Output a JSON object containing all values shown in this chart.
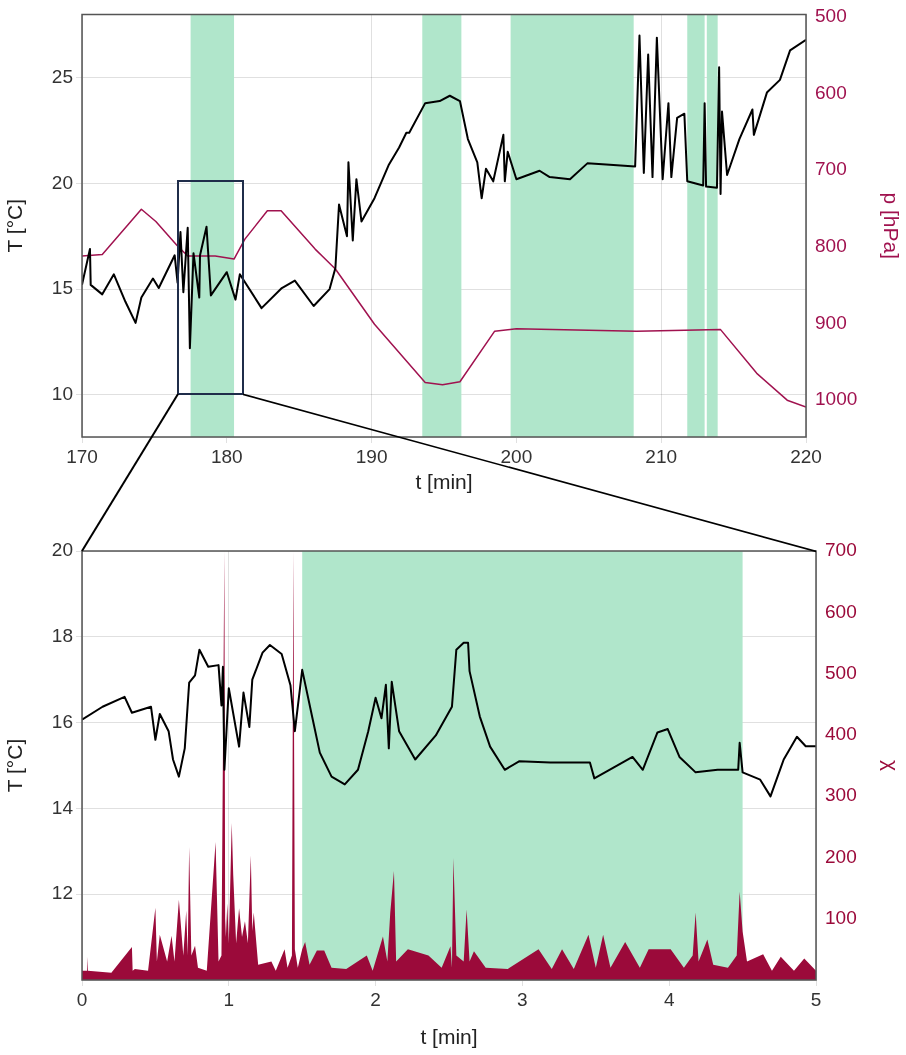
{
  "chart_data": [
    {
      "type": "line",
      "xlabel": "t [min]",
      "ylabel": "T [°C]",
      "y2label": "p [hPa]",
      "xlim": [
        170,
        220
      ],
      "xticks": [
        170,
        180,
        190,
        200,
        210,
        220
      ],
      "ylim": [
        8,
        28
      ],
      "yticks": [
        10,
        15,
        20,
        25
      ],
      "y2lim": [
        1048,
        497
      ],
      "y2ticks": [
        500,
        600,
        700,
        800,
        900,
        1000
      ],
      "grid": true,
      "line_style": "solid",
      "bands": [
        {
          "axis": "x",
          "from": 177.5,
          "to": 180.5,
          "color": "#b0e6cb"
        },
        {
          "axis": "x",
          "from": 193.5,
          "to": 196.2,
          "color": "#b0e6cb"
        },
        {
          "axis": "x",
          "from": 199.6,
          "to": 208.1,
          "color": "#b0e6cb"
        },
        {
          "axis": "x",
          "from": 211.8,
          "to": 213.0,
          "color": "#b0e6cb"
        },
        {
          "axis": "x",
          "from": 213.15,
          "to": 213.9,
          "color": "#b0e6cb"
        }
      ],
      "series": [
        {
          "color": "#000000",
          "x": [
            170,
            170.55,
            170.6,
            171.4,
            172.2,
            173.0,
            173.7,
            174.1,
            174.9,
            175.3,
            176.4,
            176.6,
            176.8,
            177.0,
            177.3,
            177.45,
            177.7,
            178.1,
            178.15,
            178.6,
            178.9,
            180.0,
            180.6,
            180.9,
            182.4,
            183.8,
            184.7,
            186.0,
            187.1,
            187.5,
            187.75,
            188.3,
            188.4,
            188.7,
            188.95,
            189.3,
            190.2,
            191.2,
            191.9,
            192.4,
            192.6,
            193.7,
            194.7,
            195.4,
            196.1,
            196.65,
            197.3,
            197.6,
            197.9,
            198.4,
            199.1,
            199.2,
            199.4,
            200.0,
            201.6,
            202.3,
            203.7,
            204.9,
            206.2,
            208.2,
            208.5,
            208.8,
            209.1,
            209.4,
            209.7,
            210.1,
            210.5,
            210.7,
            211.1,
            211.6,
            211.8,
            212.9,
            213.0,
            213.1,
            213.85,
            214.0,
            214.1,
            214.2,
            214.55,
            215.4,
            216.3,
            216.4,
            217.3,
            218.2,
            218.9,
            220
          ],
          "values": [
            15.2,
            16.9,
            15.2,
            14.75,
            15.7,
            14.4,
            13.4,
            14.6,
            15.5,
            15.05,
            16.6,
            15.3,
            17.7,
            14.85,
            17.9,
            12.2,
            16.7,
            14.6,
            16.6,
            17.95,
            14.7,
            15.8,
            14.5,
            15.7,
            14.1,
            15.05,
            15.4,
            14.2,
            15.0,
            16.0,
            19.0,
            17.5,
            21.0,
            17.3,
            20.2,
            18.2,
            19.3,
            20.9,
            21.7,
            22.4,
            22.4,
            23.8,
            23.9,
            24.15,
            23.9,
            22.1,
            21.0,
            19.3,
            20.7,
            20.1,
            22.3,
            20.1,
            21.5,
            20.2,
            20.6,
            20.3,
            20.2,
            20.95,
            20.9,
            20.8,
            27.0,
            20.5,
            26.1,
            20.3,
            26.9,
            20.2,
            23.8,
            20.3,
            23.1,
            23.3,
            20.1,
            19.9,
            23.8,
            19.85,
            19.8,
            25.5,
            19.5,
            23.4,
            20.4,
            22.1,
            23.5,
            22.3,
            24.3,
            24.9,
            26.3,
            26.8
          ]
        },
        {
          "color": "#a0124f",
          "axis": "y2",
          "x": [
            170,
            171.4,
            174.1,
            175.1,
            176.55,
            177.3,
            179.2,
            180.5,
            181.25,
            182.8,
            183.75,
            186.1,
            187.5,
            190.2,
            193.7,
            194.9,
            196.1,
            198.5,
            200.0,
            208.3,
            214.1,
            216.6,
            218.7,
            220
          ],
          "values": [
            812,
            810,
            751,
            767,
            798,
            812,
            812,
            816,
            790,
            753,
            753,
            803,
            829,
            901,
            977,
            980,
            976,
            910,
            907,
            910,
            908,
            965,
            1000,
            1009
          ]
        }
      ]
    },
    {
      "type": "line",
      "xlabel": "t [min]",
      "ylabel": "T [°C]",
      "y2label": "χ",
      "xlim": [
        0,
        5
      ],
      "xticks": [
        0,
        1,
        2,
        3,
        4,
        5
      ],
      "ylim": [
        10,
        20
      ],
      "yticks": [
        12,
        14,
        16,
        18,
        20
      ],
      "y2lim": [
        0,
        700
      ],
      "y2ticks": [
        100,
        200,
        300,
        400,
        500,
        600,
        700
      ],
      "grid": true,
      "line_style": "solid",
      "bands": [
        {
          "axis": "x",
          "from": 1.5,
          "to": 4.5,
          "color": "#b0e6cb"
        }
      ],
      "series": [
        {
          "type": "area",
          "color": "#9b0a3a",
          "axis": "y2",
          "x": [
            0,
            0.03,
            0.034,
            0.04,
            0.2,
            0.34,
            0.345,
            0.36,
            0.45,
            0.5,
            0.51,
            0.53,
            0.58,
            0.61,
            0.63,
            0.66,
            0.69,
            0.71,
            0.72,
            0.73,
            0.745,
            0.77,
            0.79,
            0.85,
            0.91,
            0.93,
            0.95,
            0.97,
            0.975,
            0.98,
            0.99,
            1.0,
            1.02,
            1.03,
            1.05,
            1.07,
            1.09,
            1.11,
            1.13,
            1.15,
            1.16,
            1.17,
            1.2,
            1.29,
            1.32,
            1.38,
            1.4,
            1.43,
            1.44,
            1.45,
            1.47,
            1.5,
            1.52,
            1.55,
            1.6,
            1.65,
            1.7,
            1.8,
            1.94,
            1.98,
            2.05,
            2.08,
            2.1,
            2.125,
            2.14,
            2.22,
            2.36,
            2.45,
            2.51,
            2.52,
            2.53,
            2.55,
            2.6,
            2.62,
            2.64,
            2.67,
            2.75,
            2.9,
            3.11,
            3.2,
            3.27,
            3.35,
            3.45,
            3.5,
            3.55,
            3.6,
            3.7,
            3.8,
            3.86,
            4.01,
            4.1,
            4.16,
            4.18,
            4.2,
            4.26,
            4.3,
            4.4,
            4.46,
            4.48,
            4.5,
            4.53,
            4.64,
            4.7,
            4.76,
            4.85,
            4.92,
            5.0
          ],
          "values": [
            15,
            15,
            38,
            15,
            12,
            54,
            15,
            18,
            15,
            118,
            30,
            74,
            30,
            72,
            30,
            131,
            40,
            113,
            40,
            217,
            40,
            56,
            20,
            15,
            225,
            30,
            40,
            700,
            100,
            70,
            125,
            60,
            256,
            172,
            60,
            117,
            70,
            96,
            60,
            203,
            80,
            110,
            25,
            30,
            15,
            50,
            20,
            40,
            700,
            50,
            20,
            50,
            62,
            25,
            48,
            48,
            20,
            18,
            40,
            15,
            71,
            30,
            110,
            178,
            30,
            50,
            40,
            20,
            55,
            20,
            199,
            40,
            30,
            115,
            30,
            47,
            20,
            18,
            50,
            18,
            50,
            18,
            74,
            20,
            74,
            20,
            62,
            20,
            50,
            50,
            20,
            40,
            110,
            30,
            66,
            25,
            20,
            40,
            144,
            79,
            30,
            42,
            15,
            38,
            15,
            35,
            15
          ]
        },
        {
          "color": "#000000",
          "x": [
            0,
            0.14,
            0.29,
            0.34,
            0.47,
            0.5,
            0.53,
            0.59,
            0.62,
            0.66,
            0.7,
            0.73,
            0.77,
            0.8,
            0.86,
            0.93,
            0.95,
            0.96,
            0.97,
            1.0,
            1.07,
            1.1,
            1.14,
            1.16,
            1.23,
            1.28,
            1.36,
            1.42,
            1.45,
            1.5,
            1.57,
            1.62,
            1.7,
            1.79,
            1.88,
            1.95,
            2.0,
            2.04,
            2.07,
            2.09,
            2.11,
            2.16,
            2.27,
            2.41,
            2.52,
            2.55,
            2.6,
            2.63,
            2.64,
            2.71,
            2.78,
            2.88,
            2.98,
            3.19,
            3.46,
            3.49,
            3.75,
            3.82,
            3.92,
            3.99,
            4.07,
            4.18,
            4.33,
            4.47,
            4.48,
            4.5,
            4.62,
            4.69,
            4.78,
            4.87,
            4.93,
            5.0
          ],
          "values": [
            16.07,
            16.37,
            16.6,
            16.23,
            16.37,
            15.6,
            16.2,
            15.8,
            15.14,
            14.74,
            15.4,
            16.93,
            17.1,
            17.7,
            17.3,
            17.34,
            16.4,
            17.3,
            14.9,
            16.8,
            15.44,
            16.7,
            15.9,
            17.0,
            17.63,
            17.81,
            17.6,
            16.87,
            15.8,
            17.23,
            16.1,
            15.3,
            14.74,
            14.56,
            14.9,
            15.8,
            16.58,
            16.1,
            16.88,
            15.4,
            16.95,
            15.8,
            15.14,
            15.7,
            16.37,
            17.7,
            17.86,
            17.86,
            17.2,
            16.14,
            15.44,
            14.9,
            15.1,
            15.07,
            15.07,
            14.7,
            15.2,
            14.9,
            15.77,
            15.85,
            15.2,
            14.84,
            14.9,
            14.9,
            15.53,
            14.84,
            14.67,
            14.28,
            15.14,
            15.67,
            15.45,
            15.45
          ]
        }
      ]
    }
  ]
}
